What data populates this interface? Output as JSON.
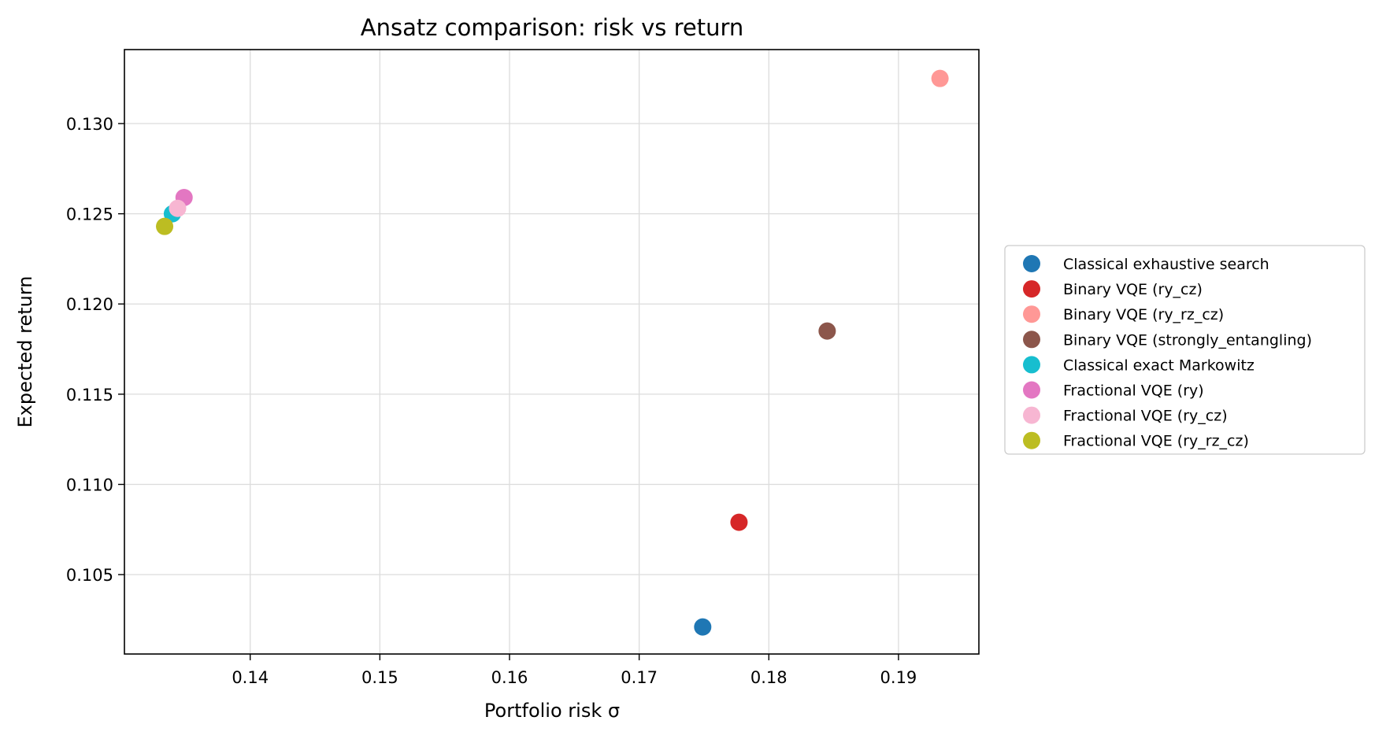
{
  "chart_data": {
    "type": "scatter",
    "title": "Ansatz comparison: risk vs return",
    "xlabel": "Portfolio risk σ",
    "ylabel": "Expected return",
    "xlim": [
      0.1303,
      0.1962
    ],
    "ylim": [
      0.1006,
      0.1341
    ],
    "x_ticks": [
      {
        "value": 0.14,
        "label": "0.14"
      },
      {
        "value": 0.15,
        "label": "0.15"
      },
      {
        "value": 0.16,
        "label": "0.16"
      },
      {
        "value": 0.17,
        "label": "0.17"
      },
      {
        "value": 0.18,
        "label": "0.18"
      },
      {
        "value": 0.19,
        "label": "0.19"
      }
    ],
    "y_ticks": [
      {
        "value": 0.105,
        "label": "0.105"
      },
      {
        "value": 0.11,
        "label": "0.110"
      },
      {
        "value": 0.115,
        "label": "0.115"
      },
      {
        "value": 0.12,
        "label": "0.120"
      },
      {
        "value": 0.125,
        "label": "0.125"
      },
      {
        "value": 0.13,
        "label": "0.130"
      }
    ],
    "grid": true,
    "legend_position": "outside-right",
    "series": [
      {
        "name": "Classical exhaustive search",
        "color": "#1f77b4",
        "x": 0.1749,
        "y": 0.1021
      },
      {
        "name": "Binary VQE (ry_cz)",
        "color": "#d62728",
        "x": 0.1777,
        "y": 0.1079
      },
      {
        "name": "Binary VQE (ry_rz_cz)",
        "color": "#ff9896",
        "x": 0.1932,
        "y": 0.1325
      },
      {
        "name": "Binary VQE (strongly_entangling)",
        "color": "#8c564b",
        "x": 0.1845,
        "y": 0.1185
      },
      {
        "name": "Classical exact Markowitz",
        "color": "#17becf",
        "x": 0.134,
        "y": 0.125
      },
      {
        "name": "Fractional VQE (ry)",
        "color": "#e377c2",
        "x": 0.1349,
        "y": 0.1259
      },
      {
        "name": "Fractional VQE (ry_cz)",
        "color": "#f7b6d2",
        "x": 0.1344,
        "y": 0.1253
      },
      {
        "name": "Fractional VQE (ry_rz_cz)",
        "color": "#bcbd22",
        "x": 0.1334,
        "y": 0.1243
      }
    ]
  }
}
